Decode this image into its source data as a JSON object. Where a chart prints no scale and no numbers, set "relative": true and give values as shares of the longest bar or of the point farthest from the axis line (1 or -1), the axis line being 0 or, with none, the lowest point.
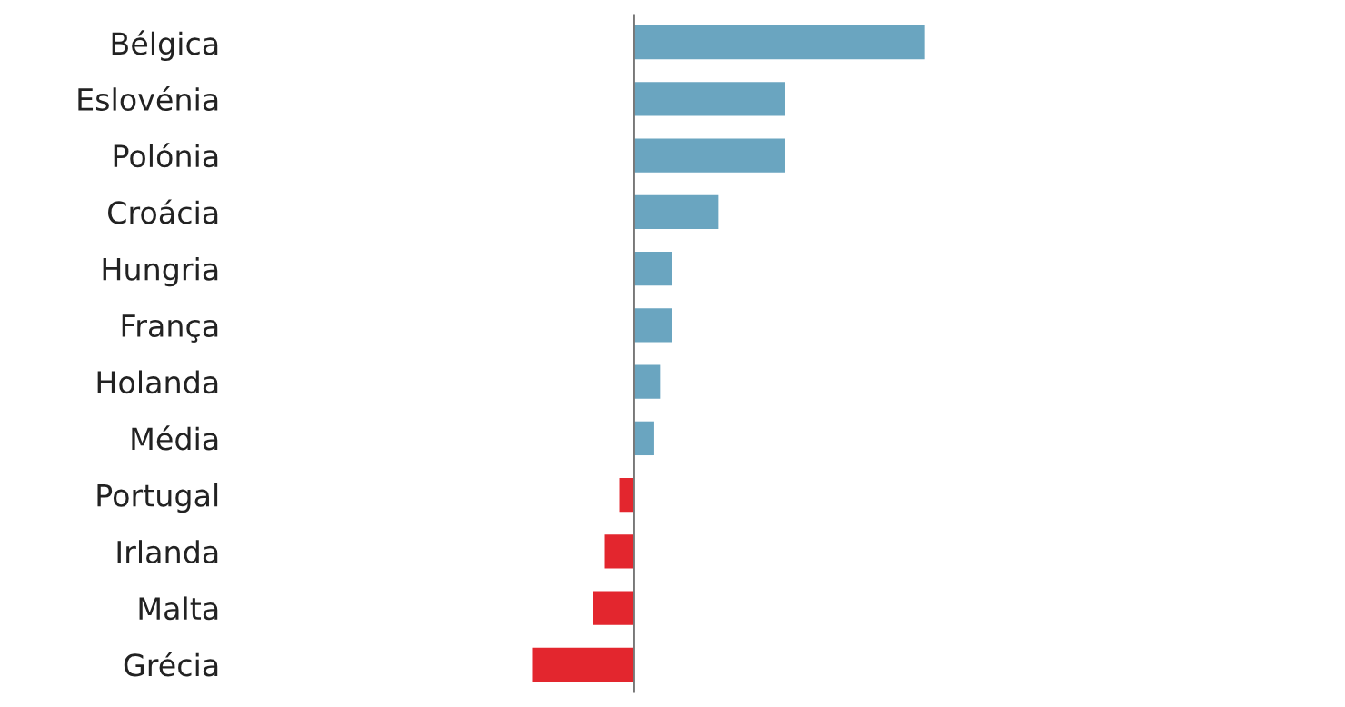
{
  "chart_data": {
    "type": "bar",
    "orientation": "horizontal",
    "relative": true,
    "categories": [
      "Bélgica",
      "Eslovénia",
      "Polónia",
      "Croácia",
      "Hungria",
      "França",
      "Holanda",
      "Média",
      "Portugal",
      "Irlanda",
      "Malta",
      "Grécia"
    ],
    "values": [
      1,
      0.52,
      0.52,
      0.29,
      0.13,
      0.13,
      0.09,
      0.07,
      -0.05,
      -0.1,
      -0.14,
      -0.35
    ],
    "colors": [
      "#6aa5c0",
      "#6aa5c0",
      "#6aa5c0",
      "#6aa5c0",
      "#6aa5c0",
      "#6aa5c0",
      "#6aa5c0",
      "#6aa5c0",
      "#e3262e",
      "#e3262e",
      "#e3262e",
      "#e3262e"
    ]
  }
}
